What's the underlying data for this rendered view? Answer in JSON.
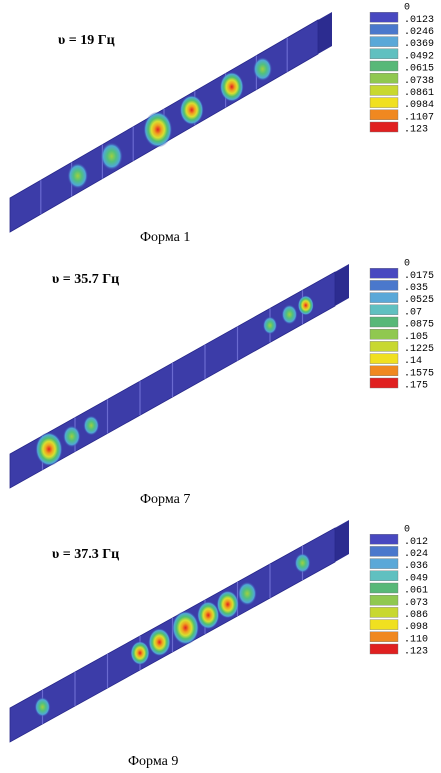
{
  "panels": [
    {
      "frequency": "υ = 19 Гц",
      "caption": "Форма 1",
      "legend": [
        "0",
        ".0123",
        ".0246",
        ".0369",
        ".0492",
        ".0615",
        ".0738",
        ".0861",
        ".0984",
        ".1107",
        ".123"
      ]
    },
    {
      "frequency": "υ = 35.7 Гц",
      "caption": "Форма 7",
      "legend": [
        "0",
        ".0175",
        ".035",
        ".0525",
        ".07",
        ".0875",
        ".105",
        ".1225",
        ".14",
        ".1575",
        ".175"
      ]
    },
    {
      "frequency": "υ = 37.3 Гц",
      "caption": "Форма 9",
      "legend": [
        "0",
        ".012",
        ".024",
        ".036",
        ".049",
        ".061",
        ".073",
        ".086",
        ".098",
        ".110",
        ".123"
      ]
    }
  ]
}
